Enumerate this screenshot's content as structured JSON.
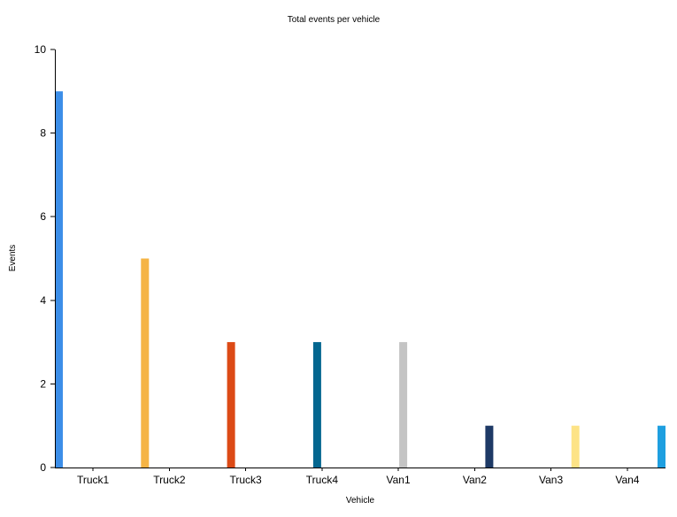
{
  "chart_data": {
    "type": "bar",
    "title": "Total events per vehicle",
    "xlabel": "Vehicle",
    "ylabel": "Events",
    "categories": [
      "Truck1",
      "Truck2",
      "Truck3",
      "Truck4",
      "Van1",
      "Van2",
      "Van3",
      "Van4"
    ],
    "values": [
      9,
      5,
      3,
      3,
      3,
      1,
      1,
      1
    ],
    "colors": [
      "#3c8ee8",
      "#f5b445",
      "#dc4a16",
      "#03668f",
      "#c4c4c4",
      "#1e3a66",
      "#fde386",
      "#1e9fe0"
    ],
    "ylim": [
      0,
      10
    ],
    "yticks": [
      0,
      2,
      4,
      6,
      8,
      10
    ],
    "grid": false,
    "legend": "none"
  }
}
